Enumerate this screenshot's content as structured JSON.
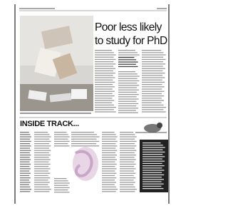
{
  "article": {
    "headline_lines": [
      "Poor less likely",
      "to study for PhD"
    ]
  },
  "section": {
    "title": "INSIDE TRACK..."
  }
}
